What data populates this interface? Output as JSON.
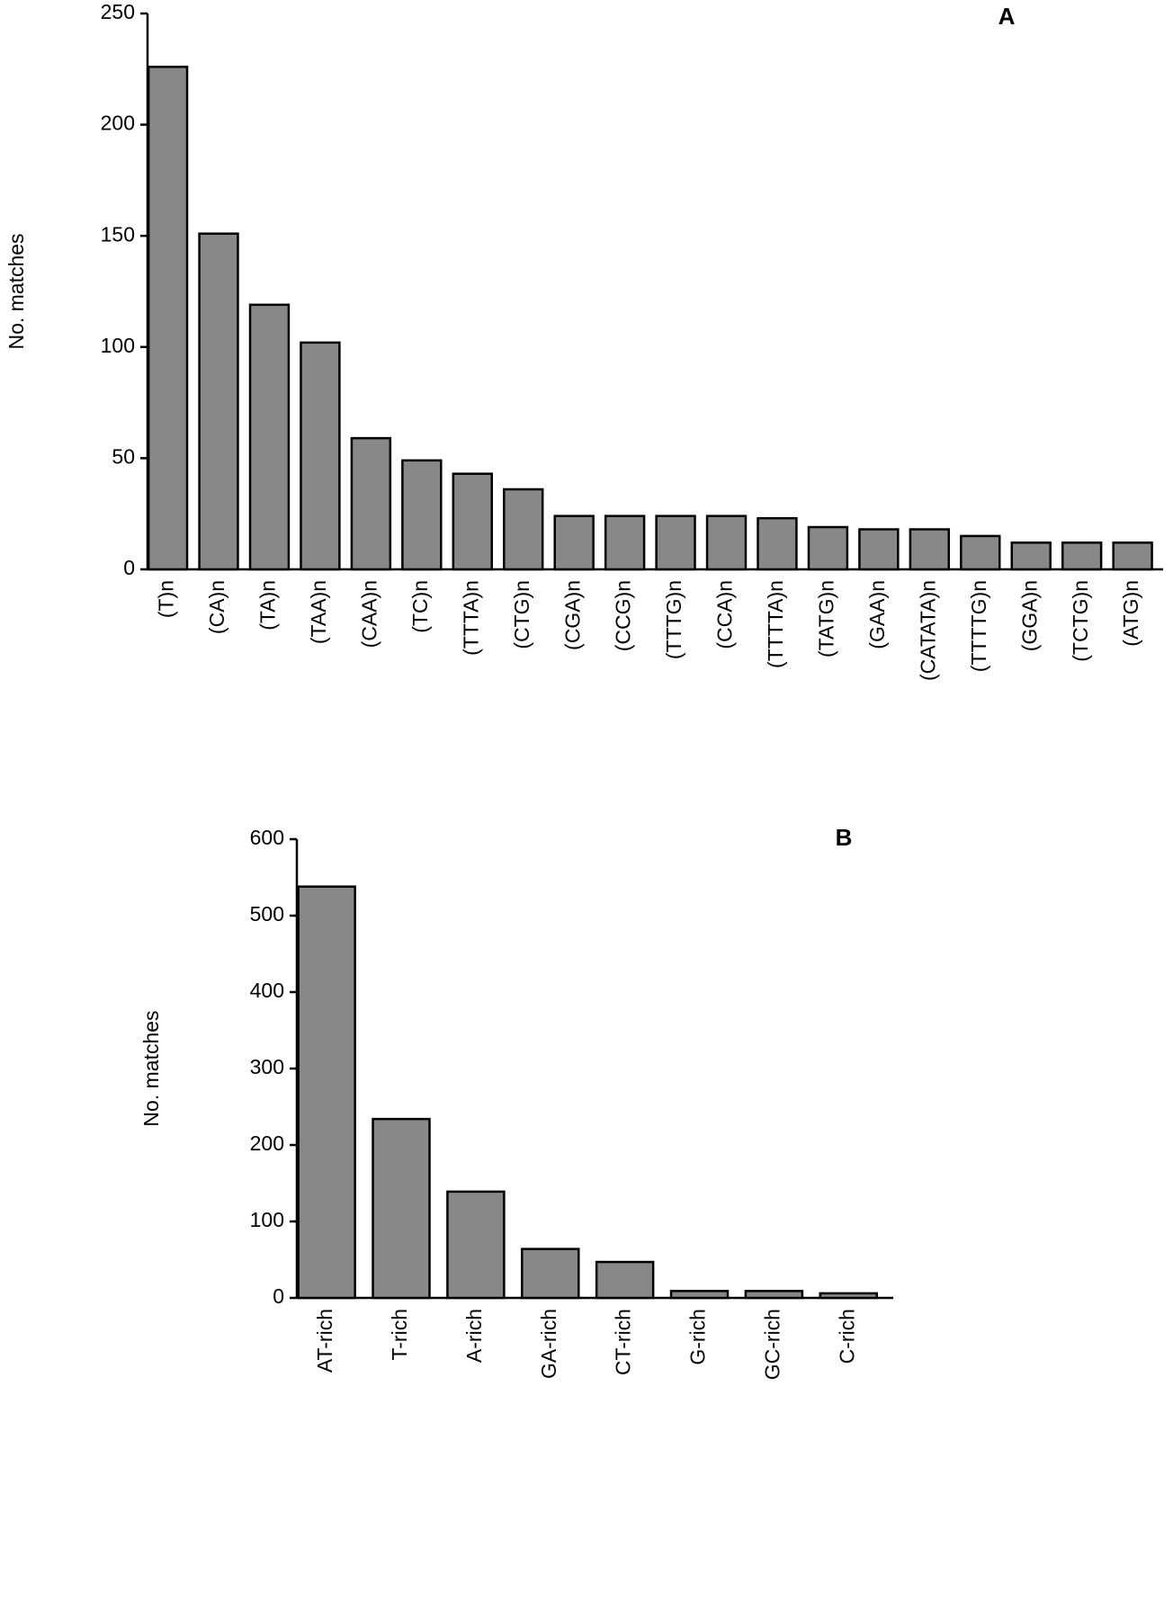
{
  "chart_data": [
    {
      "type": "bar",
      "label": "A",
      "ylabel": "No. matches",
      "categories": [
        "(T)n",
        "(CA)n",
        "(TA)n",
        "(TAA)n",
        "(CAA)n",
        "(TC)n",
        "(TTTA)n",
        "(CTG)n",
        "(CGA)n",
        "(CCG)n",
        "(TTTG)n",
        "(CCA)n",
        "(TTTTA)n",
        "(TATG)n",
        "(GAA)n",
        "(CATATA)n",
        "(TTTTG)n",
        "(GGA)n",
        "(TCTG)n",
        "(ATG)n"
      ],
      "values": [
        226,
        151,
        119,
        102,
        59,
        49,
        43,
        36,
        24,
        24,
        24,
        24,
        23,
        19,
        18,
        18,
        15,
        12,
        12,
        12
      ],
      "color": "#888888",
      "ylim": [
        0,
        250
      ],
      "yticks": [
        0,
        50,
        100,
        150,
        200,
        250
      ]
    },
    {
      "type": "bar",
      "label": "B",
      "ylabel": "No. matches",
      "categories": [
        "AT-rich",
        "T-rich",
        "A-rich",
        "GA-rich",
        "CT-rich",
        "G-rich",
        "GC-rich",
        "C-rich"
      ],
      "values": [
        538,
        234,
        139,
        64,
        47,
        9,
        9,
        6
      ],
      "color": "#888888",
      "ylim": [
        0,
        600
      ],
      "yticks": [
        0,
        100,
        200,
        300,
        400,
        500,
        600
      ]
    }
  ]
}
